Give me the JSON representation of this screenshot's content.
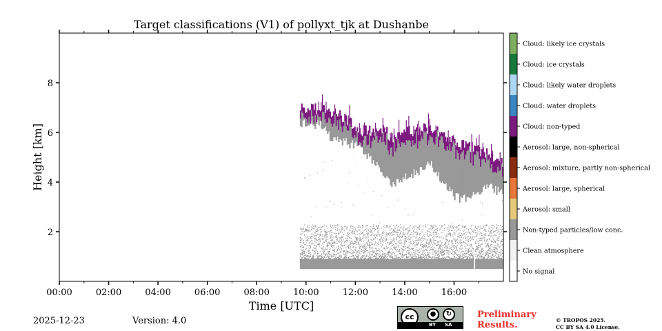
{
  "chart_data": {
    "type": "heatmap",
    "title": "Target classifications (V1) of pollyxt_tjk at Dushanbe",
    "xlabel": "Time [UTC]",
    "ylabel": "Height [km]",
    "xlim": [
      0,
      18
    ],
    "ylim": [
      0,
      10
    ],
    "x_ticks": [
      {
        "value": 0,
        "label": "00:00"
      },
      {
        "value": 2,
        "label": "02:00"
      },
      {
        "value": 4,
        "label": "04:00"
      },
      {
        "value": 6,
        "label": "06:00"
      },
      {
        "value": 8,
        "label": "08:00"
      },
      {
        "value": 10,
        "label": "10:00"
      },
      {
        "value": 12,
        "label": "12:00"
      },
      {
        "value": 14,
        "label": "14:00"
      },
      {
        "value": 16,
        "label": "16:00"
      }
    ],
    "y_ticks": [
      {
        "value": 2,
        "label": "2"
      },
      {
        "value": 4,
        "label": "4"
      },
      {
        "value": 6,
        "label": "6"
      },
      {
        "value": 8,
        "label": "8"
      }
    ],
    "data_start_time": 9.75,
    "data_gap_time": 16.8,
    "lowest_valid_height_km": 0.5,
    "dense_aerosol_top_km": 0.9,
    "sparse_aerosol_top_km": 2.3,
    "legend": [
      {
        "label": "Cloud: likely ice crystals",
        "color": "#7fae63"
      },
      {
        "label": "Cloud: ice crystals",
        "color": "#187a3a"
      },
      {
        "label": "Cloud: likely water droplets",
        "color": "#aed7f3"
      },
      {
        "label": "Cloud: water droplets",
        "color": "#3a86c2"
      },
      {
        "label": "Cloud: non-typed",
        "color": "#7c1a80"
      },
      {
        "label": "Aerosol: large, non-spherical",
        "color": "#000000"
      },
      {
        "label": "Aerosol: mixture, partly non-spherical",
        "color": "#8a2a0e"
      },
      {
        "label": "Aerosol: large, spherical",
        "color": "#e8773a"
      },
      {
        "label": "Aerosol: small",
        "color": "#e4c97a"
      },
      {
        "label": "Non-typed particles/low conc.",
        "color": "#999999"
      },
      {
        "label": "Clean atmosphere",
        "color": "#f2f2f2"
      },
      {
        "label": "No signal",
        "color": "#ffffff"
      }
    ],
    "cloud_layer_profile": {
      "description_units": "time_hours -> cloud top / base height km",
      "time": [
        9.75,
        10.3,
        10.6,
        11.0,
        11.5,
        12.0,
        12.5,
        13.0,
        13.5,
        14.0,
        14.5,
        15.0,
        15.5,
        16.0,
        16.5,
        17.0,
        17.5,
        17.95
      ],
      "top": [
        7.0,
        6.9,
        7.1,
        6.8,
        6.6,
        6.2,
        6.0,
        6.2,
        5.8,
        6.0,
        6.1,
        6.2,
        6.0,
        5.6,
        5.5,
        5.3,
        5.0,
        4.8
      ],
      "base": [
        6.4,
        6.3,
        6.3,
        5.8,
        5.6,
        5.5,
        5.0,
        4.5,
        3.8,
        4.2,
        4.4,
        4.8,
        4.0,
        3.4,
        3.3,
        3.6,
        3.8,
        3.5
      ]
    }
  },
  "footer": {
    "date": "2025-12-23",
    "version": "Version: 4.0",
    "license_badge": [
      "BY",
      "SA"
    ],
    "cc_text": "cc",
    "preliminary_line1": "Preliminary",
    "preliminary_line2": "Results.",
    "copyright_line1": "© TROPOS 2025.",
    "copyright_line2": "CC BY SA 4.0 License."
  }
}
